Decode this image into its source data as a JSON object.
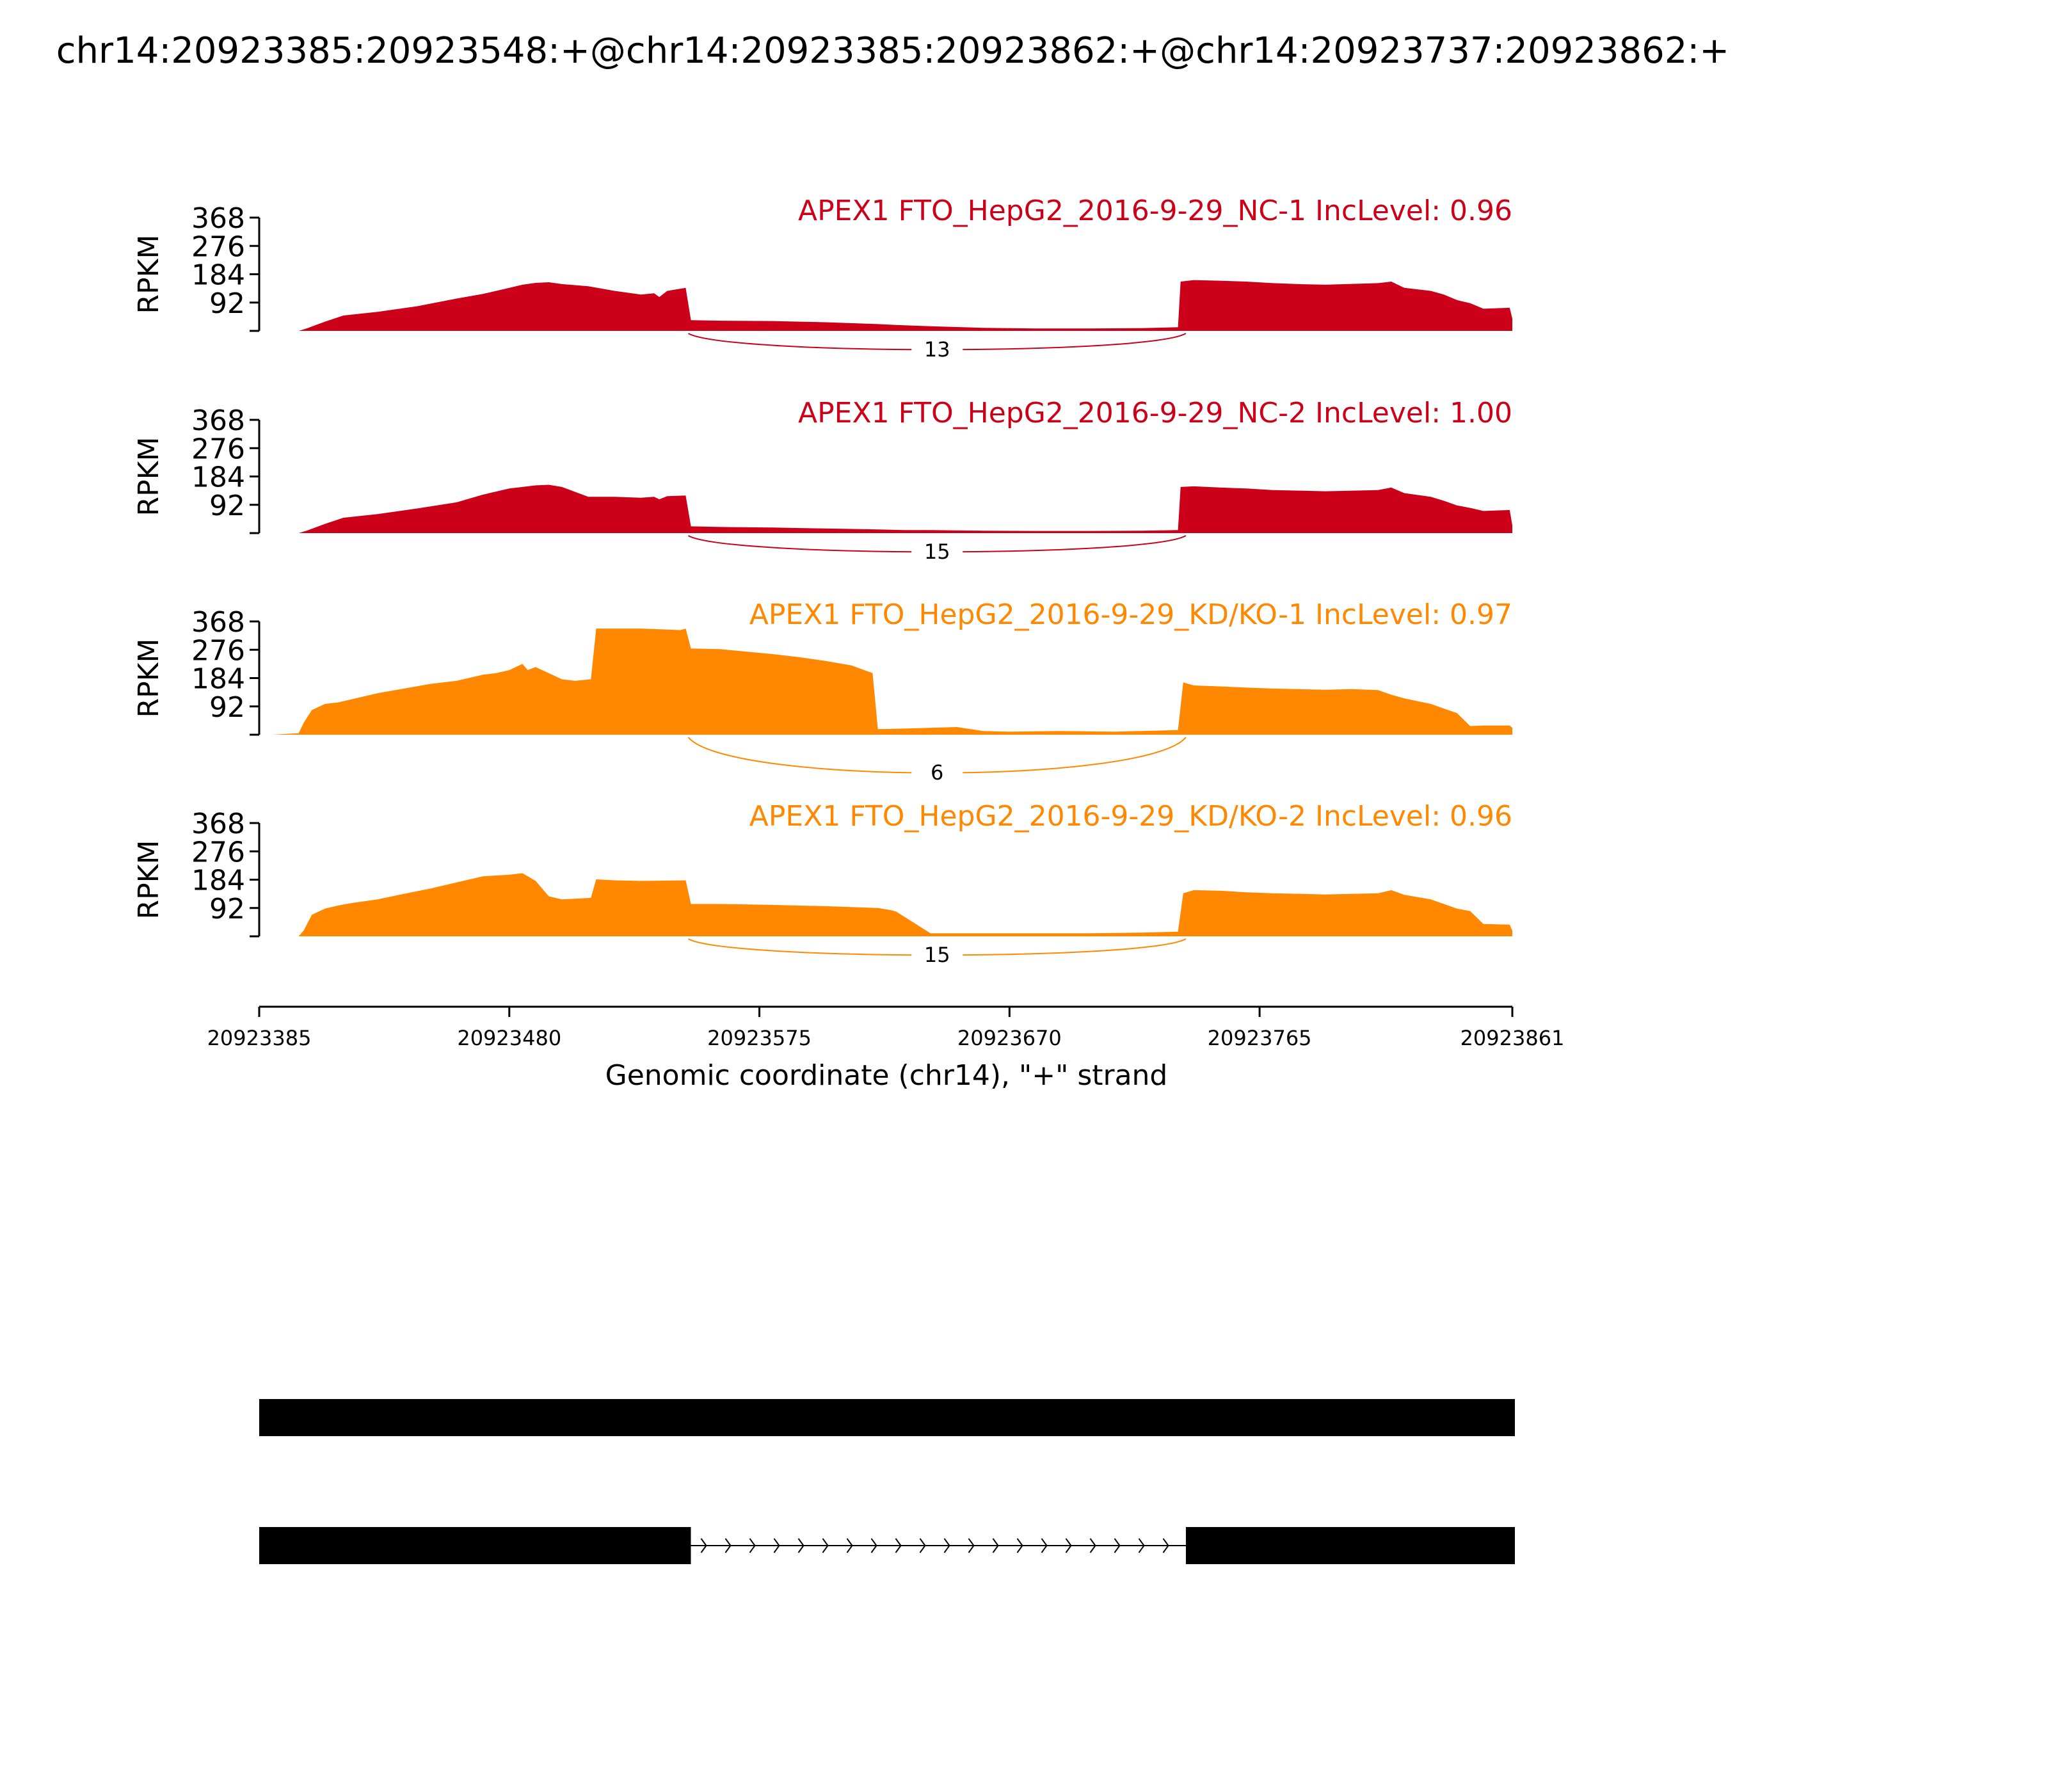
{
  "chart_data": {
    "type": "area",
    "title": "chr14:20923385:20923548:+@chr14:20923385:20923862:+@chr14:20923737:20923862:+",
    "xlabel": "Genomic coordinate (chr14), \"+\" strand",
    "ylabel": "RPKM",
    "xlim": [
      20923385,
      20923861
    ],
    "ylim": [
      0,
      368
    ],
    "x_ticks": [
      "20923385",
      "20923480",
      "20923575",
      "20923670",
      "20923765",
      "20923861"
    ],
    "y_ticks": [
      "92",
      "184",
      "276",
      "368"
    ],
    "colors": {
      "NC": "#cc0018",
      "KD": "#ff8800"
    },
    "series": [
      {
        "name": "APEX1 FTO_HepG2_2016-9-29_NC-1 IncLevel: 0.96",
        "color": "#cc0018",
        "junction": {
          "start": 20923548,
          "end": 20923737,
          "count": "13"
        },
        "x": [
          20923385,
          20923400,
          20923403,
          20923410,
          20923417,
          20923430,
          20923445,
          20923460,
          20923470,
          20923480,
          20923485,
          20923490,
          20923495,
          20923500,
          20923510,
          20923520,
          20923530,
          20923535,
          20923537,
          20923540,
          20923547,
          20923549,
          20923560,
          20923580,
          20923600,
          20923620,
          20923630,
          20923640,
          20923660,
          20923680,
          20923700,
          20923720,
          20923734,
          20923735,
          20923740,
          20923750,
          20923760,
          20923770,
          20923780,
          20923790,
          20923810,
          20923815,
          20923820,
          20923830,
          20923835,
          20923840,
          20923845,
          20923850,
          20923860,
          20923861
        ],
        "y": [
          0,
          0,
          8,
          30,
          50,
          62,
          80,
          105,
          120,
          140,
          150,
          156,
          158,
          152,
          145,
          130,
          118,
          122,
          110,
          130,
          140,
          35,
          33,
          32,
          28,
          22,
          18,
          15,
          10,
          8,
          8,
          9,
          12,
          160,
          165,
          163,
          160,
          155,
          152,
          150,
          155,
          160,
          140,
          130,
          118,
          100,
          90,
          72,
          75,
          40
        ]
      },
      {
        "name": "APEX1 FTO_HepG2_2016-9-29_NC-2 IncLevel: 1.00",
        "color": "#cc0018",
        "junction": {
          "start": 20923548,
          "end": 20923737,
          "count": "15"
        },
        "x": [
          20923385,
          20923400,
          20923403,
          20923410,
          20923417,
          20923430,
          20923445,
          20923460,
          20923470,
          20923480,
          20923485,
          20923490,
          20923495,
          20923500,
          20923510,
          20923520,
          20923530,
          20923535,
          20923537,
          20923540,
          20923547,
          20923549,
          20923560,
          20923580,
          20923600,
          20923620,
          20923630,
          20923640,
          20923660,
          20923680,
          20923700,
          20923720,
          20923734,
          20923735,
          20923740,
          20923750,
          20923760,
          20923770,
          20923780,
          20923790,
          20923810,
          20923815,
          20923820,
          20923830,
          20923835,
          20923840,
          20923845,
          20923850,
          20923860,
          20923861
        ],
        "y": [
          0,
          0,
          8,
          30,
          50,
          62,
          80,
          100,
          125,
          145,
          150,
          155,
          157,
          150,
          118,
          118,
          115,
          118,
          110,
          120,
          122,
          22,
          20,
          18,
          15,
          12,
          10,
          10,
          8,
          7,
          7,
          8,
          10,
          150,
          152,
          148,
          145,
          140,
          138,
          136,
          140,
          148,
          130,
          118,
          105,
          90,
          82,
          72,
          75,
          25
        ]
      },
      {
        "name": "APEX1 FTO_HepG2_2016-9-29_KD/KO-1 IncLevel: 0.97",
        "color": "#ff8800",
        "junction": {
          "start": 20923548,
          "end": 20923737,
          "count": "6"
        },
        "x": [
          20923385,
          20923390,
          20923400,
          20923402,
          20923405,
          20923410,
          20923415,
          20923420,
          20923430,
          20923440,
          20923450,
          20923460,
          20923470,
          20923475,
          20923480,
          20923485,
          20923487,
          20923490,
          20923500,
          20923505,
          20923511,
          20923513,
          20923530,
          20923545,
          20923547,
          20923549,
          20923560,
          20923570,
          20923580,
          20923590,
          20923600,
          20923610,
          20923618,
          20923620,
          20923630,
          20923650,
          20923660,
          20923670,
          20923690,
          20923710,
          20923720,
          20923734,
          20923736,
          20923740,
          20923750,
          20923760,
          20923770,
          20923780,
          20923790,
          20923800,
          20923810,
          20923815,
          20923820,
          20923830,
          20923835,
          20923840,
          20923845,
          20923850,
          20923860,
          20923861
        ],
        "y": [
          0,
          0,
          5,
          40,
          80,
          100,
          105,
          115,
          135,
          150,
          165,
          175,
          195,
          200,
          210,
          230,
          210,
          220,
          180,
          175,
          180,
          345,
          345,
          340,
          345,
          280,
          278,
          270,
          262,
          252,
          240,
          225,
          200,
          18,
          20,
          25,
          12,
          10,
          12,
          10,
          12,
          15,
          170,
          160,
          157,
          153,
          150,
          148,
          146,
          148,
          145,
          130,
          118,
          100,
          85,
          70,
          28,
          30,
          30,
          22
        ]
      },
      {
        "name": "APEX1 FTO_HepG2_2016-9-29_KD/KO-2 IncLevel: 0.96",
        "color": "#ff8800",
        "junction": {
          "start": 20923548,
          "end": 20923737,
          "count": "15"
        },
        "x": [
          20923385,
          20923400,
          20923402,
          20923405,
          20923410,
          20923415,
          20923420,
          20923430,
          20923440,
          20923450,
          20923460,
          20923470,
          20923480,
          20923485,
          20923490,
          20923495,
          20923500,
          20923505,
          20923511,
          20923513,
          20923520,
          20923530,
          20923547,
          20923549,
          20923560,
          20923580,
          20923600,
          20923620,
          20923625,
          20923627,
          20923640,
          20923660,
          20923680,
          20923700,
          20923720,
          20923734,
          20923736,
          20923740,
          20923750,
          20923760,
          20923770,
          20923780,
          20923790,
          20923810,
          20923815,
          20923820,
          20923830,
          20923835,
          20923840,
          20923845,
          20923850,
          20923860,
          20923861
        ],
        "y": [
          0,
          0,
          20,
          70,
          90,
          100,
          108,
          120,
          138,
          155,
          175,
          195,
          200,
          205,
          180,
          130,
          120,
          122,
          125,
          185,
          182,
          180,
          182,
          105,
          105,
          102,
          98,
          92,
          85,
          80,
          10,
          10,
          10,
          10,
          12,
          15,
          140,
          150,
          148,
          143,
          140,
          138,
          136,
          140,
          150,
          135,
          120,
          105,
          90,
          82,
          40,
          38,
          18
        ]
      }
    ],
    "transcripts": [
      {
        "exons": [
          [
            20923385,
            20923861
          ]
        ]
      },
      {
        "exons": [
          [
            20923385,
            20923548
          ],
          [
            20923737,
            20923861
          ]
        ]
      }
    ]
  }
}
